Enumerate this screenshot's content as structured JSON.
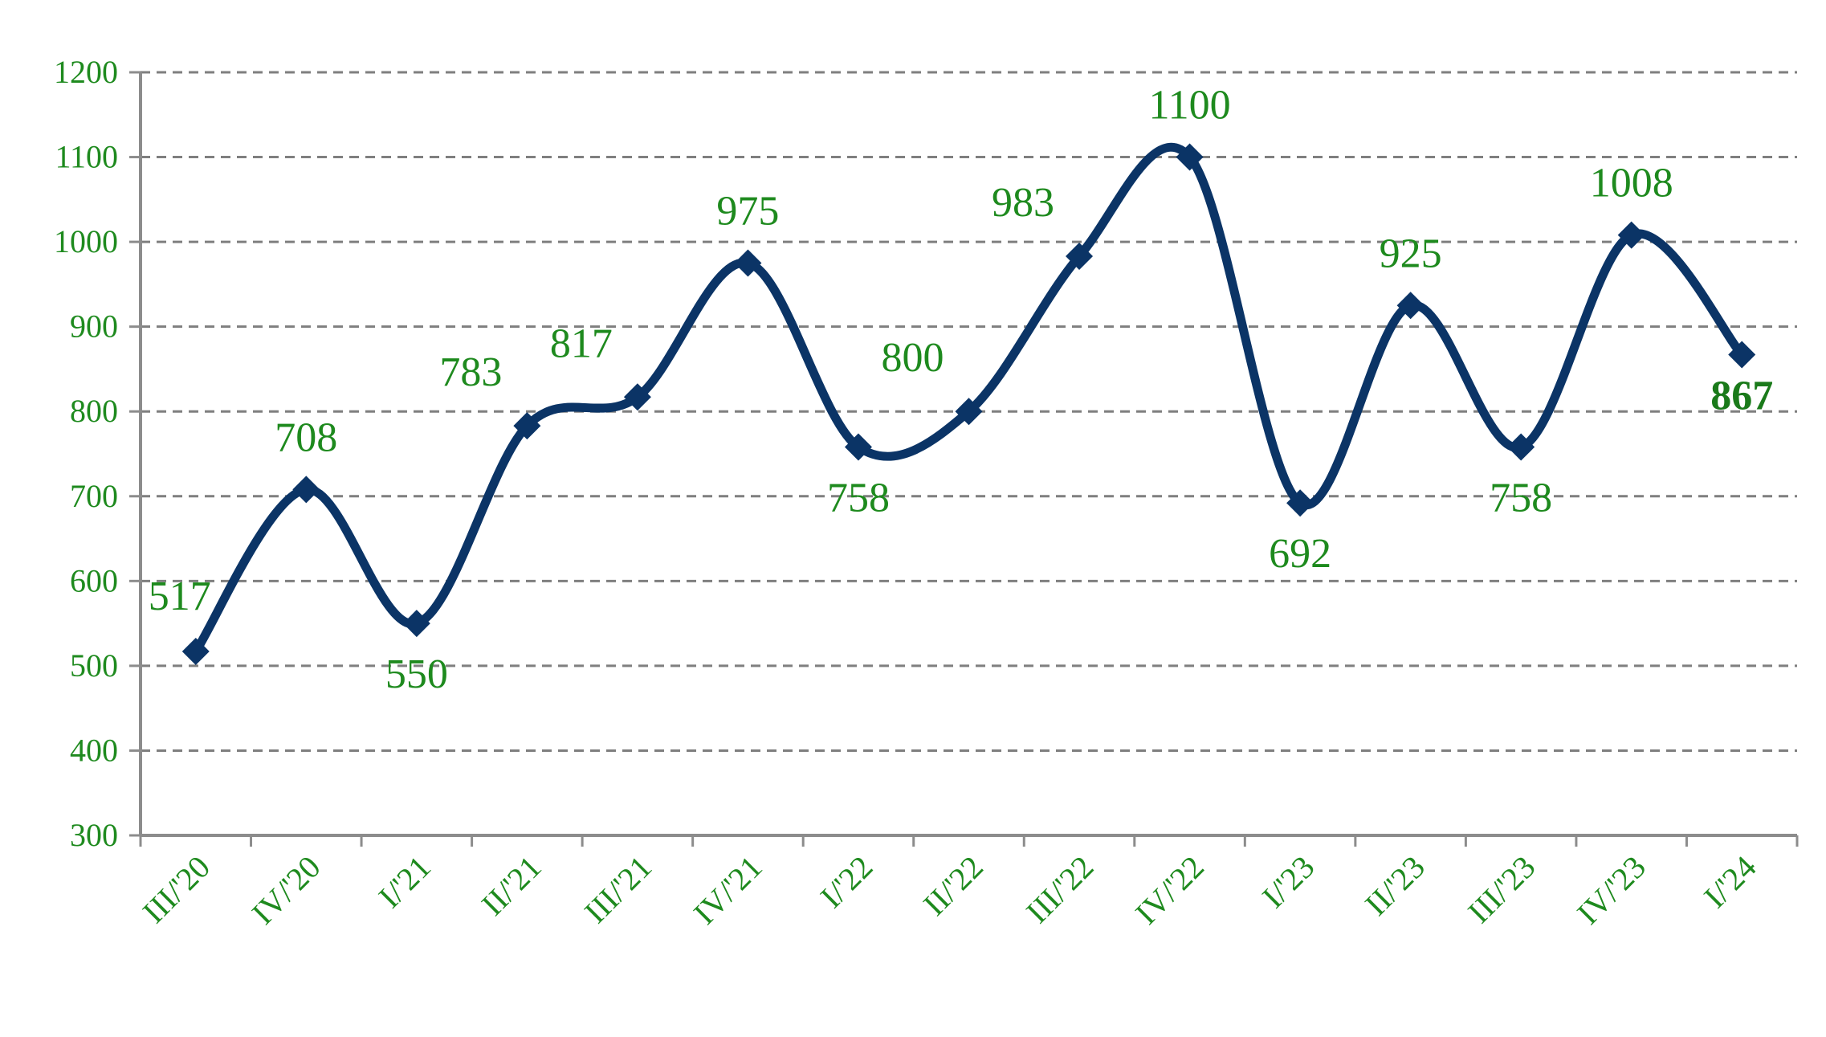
{
  "chart_data": {
    "type": "line",
    "title": "",
    "xlabel": "",
    "ylabel": "",
    "categories": [
      "III/'20",
      "IV/'20",
      "I/'21",
      "II/'21",
      "III/'21",
      "IV/'21",
      "I/'22",
      "II/'22",
      "III/'22",
      "IV/'22",
      "I/'23",
      "II/'23",
      "III/'23",
      "IV/'23",
      "I/'24"
    ],
    "series": [
      {
        "values": [
          517,
          708,
          550,
          783,
          817,
          975,
          758,
          800,
          983,
          1100,
          692,
          925,
          758,
          1008,
          867
        ]
      }
    ],
    "ylim": [
      300,
      1200
    ],
    "yticks": [
      300,
      400,
      500,
      600,
      700,
      800,
      900,
      1000,
      1100,
      1200
    ],
    "grid": "horizontal-dashed",
    "legend": "none",
    "smoothed": true,
    "marker": "diamond",
    "highlight_last": true,
    "colors": {
      "line": "#0b3466",
      "text": "#1e8a1e",
      "grid": "#7f7f7f",
      "axis": "#8c8c8c"
    }
  }
}
